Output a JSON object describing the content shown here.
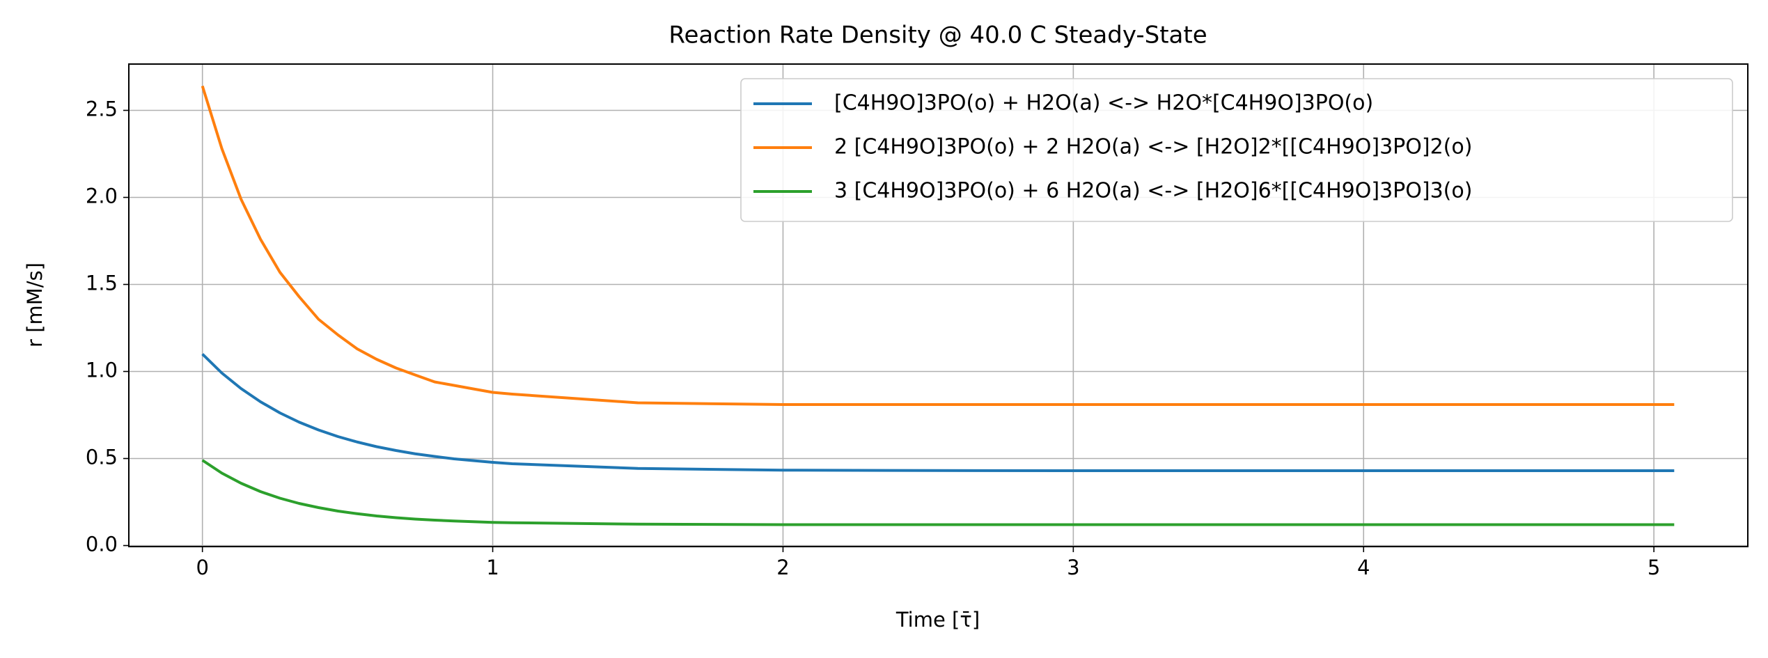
{
  "chart_data": {
    "type": "line",
    "title": "Reaction Rate Density @ 40.0 C Steady-State",
    "xlabel": "Time [τ̄]",
    "ylabel": "r [mM/s]",
    "x": [
      0,
      0.067,
      0.133,
      0.2,
      0.267,
      0.333,
      0.4,
      0.467,
      0.533,
      0.6,
      0.667,
      0.733,
      0.8,
      0.867,
      0.933,
      1.0,
      1.067,
      1.5,
      2.0,
      2.5,
      3.0,
      3.5,
      4.0,
      4.5,
      5.07
    ],
    "series": [
      {
        "name": "[C4H9O]3PO(o) + H2O(a) <-> H2O*[C4H9O]3PO(o)",
        "color": "#1f77b4",
        "values": [
          1.1,
          0.991,
          0.902,
          0.826,
          0.762,
          0.709,
          0.664,
          0.626,
          0.595,
          0.568,
          0.546,
          0.527,
          0.512,
          0.498,
          0.488,
          0.478,
          0.47,
          0.443,
          0.433,
          0.431,
          0.43,
          0.43,
          0.43,
          0.43,
          0.43
        ]
      },
      {
        "name": "2 [C4H9O]3PO(o) + 2 H2O(a) <-> [H2O]2*[[C4H9O]3PO]2(o)",
        "color": "#ff7f0e",
        "values": [
          2.64,
          2.28,
          1.99,
          1.76,
          1.57,
          1.43,
          1.3,
          1.21,
          1.13,
          1.07,
          1.02,
          0.98,
          0.94,
          0.92,
          0.9,
          0.88,
          0.87,
          0.82,
          0.81,
          0.81,
          0.81,
          0.81,
          0.81,
          0.81,
          0.81
        ]
      },
      {
        "name": "3 [C4H9O]3PO(o) + 6 H2O(a) <-> [H2O]6*[[C4H9O]3PO]3(o)",
        "color": "#2ca02c",
        "values": [
          0.49,
          0.416,
          0.358,
          0.31,
          0.272,
          0.242,
          0.218,
          0.198,
          0.183,
          0.17,
          0.16,
          0.152,
          0.146,
          0.141,
          0.137,
          0.133,
          0.131,
          0.123,
          0.12,
          0.12,
          0.12,
          0.12,
          0.12,
          0.12,
          0.12
        ]
      }
    ],
    "xlim": [
      -0.2535,
      5.3235
    ],
    "xticks": [
      0,
      1,
      2,
      3,
      4,
      5
    ],
    "ylim": [
      -0.006,
      2.766
    ],
    "yticks": [
      {
        "value": 0,
        "label": "0.0"
      },
      0.5,
      {
        "value": 1,
        "label": "1.0"
      },
      1.5,
      {
        "value": 2,
        "label": "2.0"
      },
      2.5
    ],
    "grid": true,
    "legend": "upper right"
  }
}
